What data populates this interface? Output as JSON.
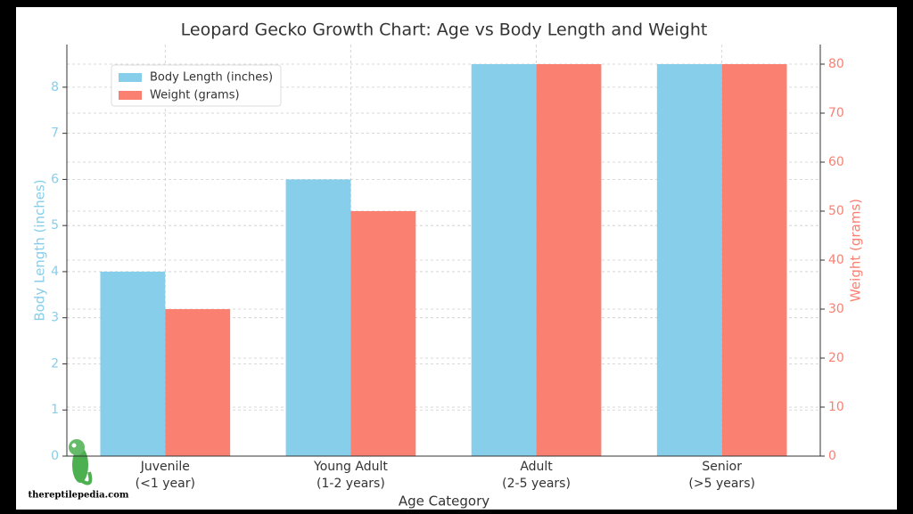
{
  "chart_data": {
    "type": "bar",
    "title": "Leopard Gecko Growth Chart: Age vs Body Length and Weight",
    "xlabel": "Age Category",
    "ylabel": "Body Length (inches)",
    "y2label": "Weight (grams)",
    "categories": [
      "Juvenile\n(<1 year)",
      "Young Adult\n(1-2 years)",
      "Adult\n(2-5 years)",
      "Senior\n(>5 years)"
    ],
    "series": [
      {
        "name": "Body Length (inches)",
        "color": "#87ceeb",
        "values": [
          4,
          6,
          8.5,
          8.5
        ]
      },
      {
        "name": "Weight (grams)",
        "color": "#fa8072",
        "axis": "y2",
        "values": [
          30,
          50,
          80,
          80
        ]
      }
    ],
    "ylim": [
      0,
      8.925
    ],
    "yticks": [
      0,
      1,
      2,
      3,
      4,
      5,
      6,
      7,
      8
    ],
    "y2lim": [
      0,
      84
    ],
    "y2ticks": [
      0,
      10,
      20,
      30,
      40,
      50,
      60,
      70,
      80
    ],
    "grid": true,
    "legend": "upper-left",
    "watermark": "thereptilepedia.com"
  }
}
